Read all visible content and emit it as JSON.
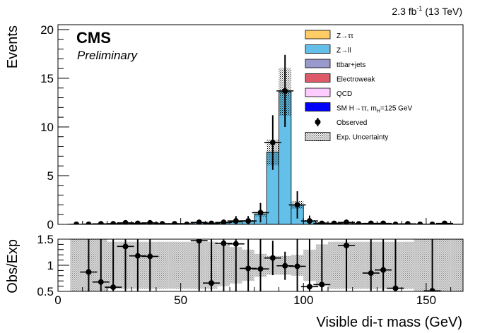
{
  "header": {
    "lumi_value": "2.3 fb",
    "lumi_exp": "-1",
    "lumi_energy": " (13 TeV)",
    "cms_label": "CMS",
    "prelim_label": "Preliminary"
  },
  "chart_data": [
    {
      "type": "bar",
      "panel": "main",
      "ylabel": "Events",
      "xlim": [
        0,
        165
      ],
      "ylim": [
        0,
        20.5
      ],
      "yticks": [
        0,
        5,
        10,
        15,
        20
      ],
      "ytick_labels": [
        "0",
        "5",
        "10",
        "15",
        "20"
      ],
      "bin_width": 5,
      "bin_lows": [
        0,
        5,
        10,
        15,
        20,
        25,
        30,
        35,
        40,
        45,
        50,
        55,
        60,
        65,
        70,
        75,
        80,
        85,
        90,
        95,
        100,
        105,
        110,
        115,
        120,
        125,
        130,
        135,
        140,
        145,
        150,
        155,
        160
      ],
      "series": [
        {
          "name": "Z→ττ",
          "color": "#ffcc66",
          "values": [
            0,
            0,
            0,
            0,
            0,
            0,
            0,
            0,
            0,
            0,
            0,
            0,
            0,
            0,
            0,
            0,
            0,
            0,
            0,
            0,
            0,
            0,
            0,
            0,
            0,
            0,
            0,
            0,
            0,
            0,
            0,
            0,
            0
          ]
        },
        {
          "name": "Z→ll",
          "color": "#64c0e8",
          "values": [
            0,
            0.02,
            0.05,
            0.08,
            0.1,
            0.12,
            0.12,
            0.12,
            0.1,
            0.1,
            0.1,
            0.15,
            0.12,
            0.15,
            0.25,
            0.35,
            1.05,
            7.4,
            13.6,
            2.0,
            0.35,
            0.15,
            0.12,
            0.1,
            0.1,
            0.08,
            0.08,
            0.06,
            0.05,
            0.04,
            0.04,
            0.03,
            0.03
          ]
        },
        {
          "name": "ttbar+jets",
          "color": "#9999cc",
          "values": [
            0,
            0,
            0,
            0,
            0,
            0,
            0,
            0,
            0,
            0,
            0,
            0,
            0,
            0,
            0,
            0,
            0,
            0,
            0,
            0,
            0,
            0,
            0,
            0,
            0,
            0,
            0,
            0,
            0,
            0,
            0,
            0,
            0
          ]
        },
        {
          "name": "Electroweak",
          "color": "#de5a6a",
          "values": [
            0,
            0,
            0,
            0,
            0,
            0,
            0,
            0,
            0,
            0,
            0,
            0,
            0,
            0,
            0,
            0,
            0,
            0,
            0,
            0,
            0,
            0,
            0,
            0,
            0,
            0,
            0,
            0,
            0,
            0,
            0,
            0,
            0
          ]
        },
        {
          "name": "QCD",
          "color": "#ffccff",
          "values": [
            0,
            0,
            0,
            0,
            0,
            0,
            0,
            0,
            0,
            0,
            0,
            0,
            0,
            0,
            0,
            0,
            0,
            0,
            0,
            0,
            0,
            0,
            0,
            0,
            0,
            0,
            0,
            0,
            0,
            0,
            0,
            0,
            0
          ]
        },
        {
          "name": "SM H→ττ, m",
          "sub": "H",
          "suffix": "=125 GeV",
          "color": "#0000ff",
          "values": [
            0,
            0,
            0,
            0,
            0,
            0,
            0,
            0,
            0,
            0,
            0,
            0,
            0,
            0,
            0,
            0,
            0,
            0,
            0,
            0,
            0,
            0,
            0,
            0,
            0,
            0,
            0,
            0,
            0,
            0,
            0,
            0,
            0
          ]
        }
      ],
      "uncertainty": {
        "name": "Exp. Uncertainty",
        "rel": [
          0,
          0.7,
          0.6,
          0.5,
          0.45,
          0.45,
          0.45,
          0.45,
          0.45,
          0.45,
          0.45,
          0.45,
          0.45,
          0.4,
          0.35,
          0.3,
          0.22,
          0.18,
          0.18,
          0.2,
          0.3,
          0.4,
          0.45,
          0.45,
          0.45,
          0.45,
          0.45,
          0.45,
          0.45,
          0.5,
          0.5,
          0.5,
          0.5
        ]
      },
      "observed": {
        "name": "Observed",
        "x": [
          7.5,
          12.5,
          17.5,
          22.5,
          27.5,
          32.5,
          37.5,
          42.5,
          47.5,
          52.5,
          57.5,
          62.5,
          67.5,
          72.5,
          77.5,
          82.5,
          87.5,
          92.5,
          97.5,
          102.5,
          107.5,
          112.5,
          117.5,
          122.5,
          127.5,
          132.5,
          137.5,
          142.5,
          147.5,
          152.5,
          157.5
        ],
        "y": [
          0,
          0,
          0.05,
          0.05,
          0.15,
          0.1,
          0.15,
          0.05,
          0.05,
          0,
          0.2,
          0.1,
          0.2,
          0.35,
          0.35,
          1.2,
          8.4,
          13.7,
          2.0,
          0.35,
          0.1,
          0.1,
          0.2,
          0.05,
          0.1,
          0.1,
          0,
          0.05,
          0,
          0,
          0.1
        ],
        "err": [
          0,
          0,
          0.1,
          0.1,
          0.2,
          0.15,
          0.2,
          0.1,
          0.1,
          0,
          0.3,
          0.15,
          0.3,
          0.5,
          0.5,
          1.0,
          2.8,
          3.7,
          1.4,
          0.55,
          0.15,
          0.15,
          0.3,
          0.1,
          0.15,
          0.15,
          0,
          0.1,
          0,
          0,
          0.15
        ]
      }
    },
    {
      "type": "scatter",
      "panel": "ratio",
      "ylabel": "Obs/Exp",
      "xlabel": "Visible di-τ mass (GeV)",
      "xlim": [
        0,
        165
      ],
      "ylim": [
        0.5,
        1.5
      ],
      "yticks": [
        0.5,
        1,
        1.5
      ],
      "ytick_labels": [
        "0.5",
        "1",
        "1.5"
      ],
      "xticks": [
        0,
        50,
        100,
        150
      ],
      "xtick_labels": [
        "0",
        "50",
        "100",
        "150"
      ],
      "x": [
        12.5,
        17.5,
        22.5,
        27.5,
        32.5,
        37.5,
        57.5,
        62.5,
        67.5,
        72.5,
        77.5,
        82.5,
        87.5,
        92.5,
        97.5,
        102.5,
        107.5,
        117.5,
        127.5,
        132.5,
        137.5,
        152.5
      ],
      "y": [
        0.87,
        0.68,
        0.58,
        1.36,
        1.18,
        1.17,
        1.47,
        0.66,
        1.42,
        1.41,
        0.94,
        0.93,
        1.14,
        0.99,
        0.98,
        0.59,
        0.63,
        1.38,
        0.85,
        0.91,
        0.56,
        0.51
      ],
      "err": [
        1.0,
        1.0,
        1.0,
        1.0,
        1.0,
        1.0,
        1.0,
        1.0,
        1.0,
        1.0,
        1.0,
        1.0,
        0.33,
        0.27,
        0.7,
        1.0,
        1.0,
        1.0,
        1.0,
        1.0,
        1.0,
        1.0
      ],
      "uncertainty_band": [
        0,
        0.7,
        0.6,
        0.5,
        0.45,
        0.45,
        0.45,
        0.45,
        0.45,
        0.45,
        0.45,
        0.45,
        0.45,
        0.4,
        0.35,
        0.3,
        0.22,
        0.18,
        0.18,
        0.2,
        0.3,
        0.4,
        0.45,
        0.45,
        0.45,
        0.45,
        0.45,
        0.45,
        0.45,
        0.5,
        0.5,
        0.5,
        0.5
      ]
    }
  ]
}
